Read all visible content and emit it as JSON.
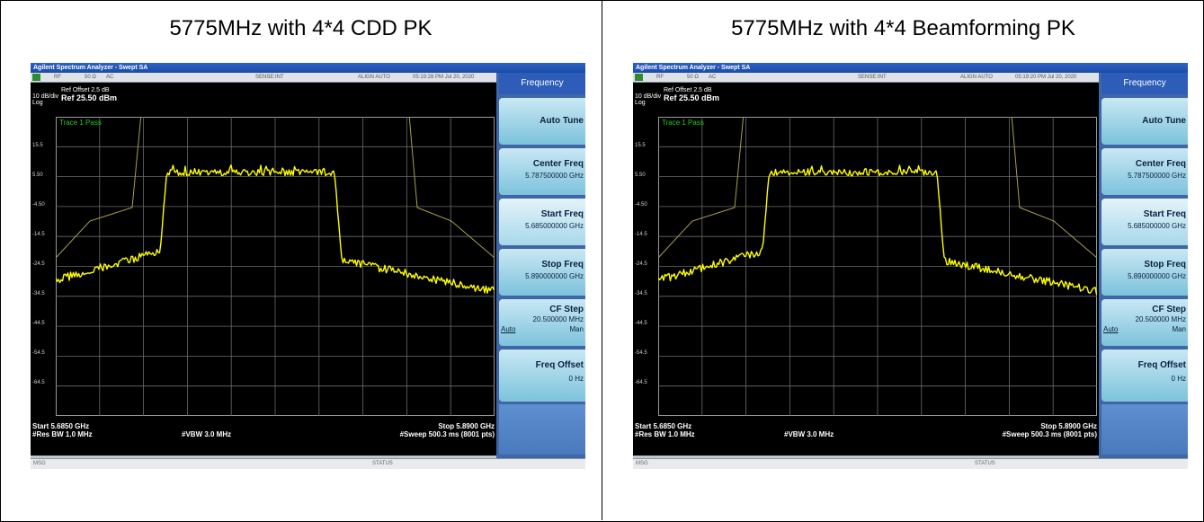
{
  "panels": [
    {
      "caption": "5775MHz with 4*4 CDD PK",
      "window_title": "Agilent Spectrum Analyzer - Swept SA",
      "status": {
        "rf": "RF",
        "impedance": "50 Ω",
        "coupling": "AC",
        "sense": "SENSE:INT",
        "align": "ALIGN AUTO",
        "timestamp": "05:19:28 PM Jul 20, 2020"
      },
      "scale": {
        "per_div": "10 dB/div",
        "mode": "Log",
        "ref_offset": "Ref Offset 2.5 dB",
        "ref_level": "Ref 25.50 dBm"
      },
      "trace_label": "Trace 1 Pass",
      "y_ticks": [
        "15.5",
        "5.50",
        "-4.50",
        "-14.5",
        "-24.5",
        "-34.5",
        "-44.5",
        "-54.5",
        "-64.5"
      ],
      "footer": {
        "start": "Start 5.6850 GHz",
        "stop": "Stop 5.8900 GHz",
        "rbw": "#Res BW 1.0 MHz",
        "vbw": "#VBW 3.0 MHz",
        "sweep": "#Sweep  500.3 ms (8001 pts)"
      },
      "softkeys": {
        "menu": "Frequency",
        "auto_tune": "Auto Tune",
        "center_label": "Center Freq",
        "center_value": "5.787500000 GHz",
        "start_label": "Start Freq",
        "start_value": "5.685000000 GHz",
        "stop_label": "Stop Freq",
        "stop_value": "5.890000000 GHz",
        "cf_label": "CF Step",
        "cf_value": "20.500000 MHz",
        "cf_auto": "Auto",
        "cf_man": "Man",
        "offset_label": "Freq Offset",
        "offset_value": "0 Hz"
      },
      "msg": "MSG",
      "status_label": "STATUS"
    },
    {
      "caption": "5775MHz with 4*4 Beamforming PK",
      "window_title": "Agilent Spectrum Analyzer - Swept SA",
      "status": {
        "rf": "RF",
        "impedance": "50 Ω",
        "coupling": "AC",
        "sense": "SENSE:INT",
        "align": "ALIGN AUTO",
        "timestamp": "05:19:20 PM Jul 20, 2020"
      },
      "scale": {
        "per_div": "10 dB/div",
        "mode": "Log",
        "ref_offset": "Ref Offset 2.5 dB",
        "ref_level": "Ref 25.50 dBm"
      },
      "trace_label": "Trace 1 Pass",
      "y_ticks": [
        "15.5",
        "5.50",
        "-4.50",
        "-14.5",
        "-24.5",
        "-34.5",
        "-44.5",
        "-54.5",
        "-64.5"
      ],
      "footer": {
        "start": "Start 5.6850 GHz",
        "stop": "Stop 5.8900 GHz",
        "rbw": "#Res BW 1.0 MHz",
        "vbw": "#VBW 3.0 MHz",
        "sweep": "#Sweep  500.3 ms (8001 pts)"
      },
      "softkeys": {
        "menu": "Frequency",
        "auto_tune": "Auto Tune",
        "center_label": "Center Freq",
        "center_value": "5.787500000 GHz",
        "start_label": "Start Freq",
        "start_value": "5.685000000 GHz",
        "stop_label": "Stop Freq",
        "stop_value": "5.890000000 GHz",
        "cf_label": "CF Step",
        "cf_value": "20.500000 MHz",
        "cf_auto": "Auto",
        "cf_man": "Man",
        "offset_label": "Freq Offset",
        "offset_value": "0 Hz"
      },
      "msg": "MSG",
      "status_label": "STATUS"
    }
  ],
  "colors": {
    "trace": "#ffff00",
    "limit_line": "#a8a050",
    "grid": "#6b6b6b",
    "trace_label": "#22cc22",
    "screen": "#000000"
  }
}
